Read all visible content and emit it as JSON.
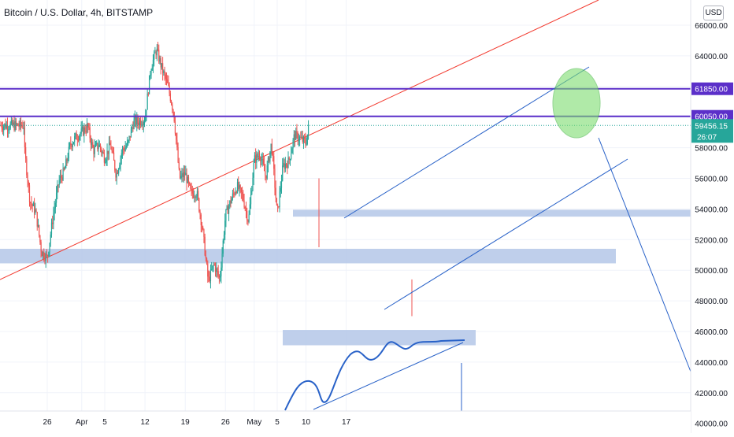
{
  "chart_data": {
    "type": "candlestick",
    "title": "Bitcoin / U.S. Dollar, 4h, BITSTAMP",
    "currency": "USD",
    "y_ticks": [
      66000,
      64000,
      62000,
      60000,
      58000,
      56000,
      54000,
      52000,
      50000,
      48000,
      46000,
      44000,
      42000,
      40000
    ],
    "y_tick_labels": [
      "66000.00",
      "64000.00",
      "62000.00",
      "60000.00",
      "58000.00",
      "56000.00",
      "54000.00",
      "52000.00",
      "50000.00",
      "48000.00",
      "46000.00",
      "44000.00",
      "42000.00",
      "40000.00"
    ],
    "ylim": [
      39300,
      67700
    ],
    "x_ticks": [
      {
        "label": "26",
        "date": "2021-03-26"
      },
      {
        "label": "Apr",
        "date": "2021-04-01"
      },
      {
        "label": "5",
        "date": "2021-04-05"
      },
      {
        "label": "12",
        "date": "2021-04-12"
      },
      {
        "label": "19",
        "date": "2021-04-19"
      },
      {
        "label": "26",
        "date": "2021-04-26"
      },
      {
        "label": "May",
        "date": "2021-05-01"
      },
      {
        "label": "5",
        "date": "2021-05-05"
      },
      {
        "label": "10",
        "date": "2021-05-10"
      },
      {
        "label": "17",
        "date": "2021-05-17"
      }
    ],
    "price_path": [
      [
        "2021-03-22",
        58000
      ],
      [
        "2021-03-23",
        54500
      ],
      [
        "2021-03-24",
        53800
      ],
      [
        "2021-03-25",
        51200
      ],
      [
        "2021-03-26",
        50800
      ],
      [
        "2021-03-27",
        53500
      ],
      [
        "2021-03-28",
        55800
      ],
      [
        "2021-03-29",
        56500
      ],
      [
        "2021-03-30",
        58200
      ],
      [
        "2021-03-31",
        58700
      ],
      [
        "2021-04-01",
        59000
      ],
      [
        "2021-04-02",
        59400
      ],
      [
        "2021-04-03",
        57800
      ],
      [
        "2021-04-04",
        58200
      ],
      [
        "2021-04-05",
        57300
      ],
      [
        "2021-04-06",
        58200
      ],
      [
        "2021-04-07",
        56200
      ],
      [
        "2021-04-08",
        57800
      ],
      [
        "2021-04-09",
        58200
      ],
      [
        "2021-04-10",
        59700
      ],
      [
        "2021-04-11",
        59700
      ],
      [
        "2021-04-12",
        59900
      ],
      [
        "2021-04-13",
        63200
      ],
      [
        "2021-04-14",
        64400
      ],
      [
        "2021-04-15",
        63100
      ],
      [
        "2021-04-16",
        62000
      ],
      [
        "2021-04-17",
        60300
      ],
      [
        "2021-04-18",
        56000
      ],
      [
        "2021-04-19",
        56300
      ],
      [
        "2021-04-20",
        55000
      ],
      [
        "2021-04-21",
        55100
      ],
      [
        "2021-04-22",
        52700
      ],
      [
        "2021-04-23",
        49300
      ],
      [
        "2021-04-24",
        50400
      ],
      [
        "2021-04-25",
        49400
      ],
      [
        "2021-04-26",
        53600
      ],
      [
        "2021-04-27",
        54600
      ],
      [
        "2021-04-28",
        55500
      ],
      [
        "2021-04-29",
        54800
      ],
      [
        "2021-04-30",
        53200
      ],
      [
        "2021-05-01",
        57200
      ],
      [
        "2021-05-02",
        57600
      ],
      [
        "2021-05-03",
        56100
      ],
      [
        "2021-05-04",
        58300
      ],
      [
        "2021-05-05",
        53600
      ],
      [
        "2021-05-06",
        56800
      ],
      [
        "2021-05-07",
        57100
      ],
      [
        "2021-05-08",
        58800
      ],
      [
        "2021-05-09",
        58600
      ],
      [
        "2021-05-10",
        58300
      ],
      [
        "2021-05-10T12:00",
        59456
      ]
    ],
    "horizontal_levels": [
      {
        "price": 61850,
        "label": "61850.00",
        "color": "#5b2fc9"
      },
      {
        "price": 60050,
        "label": "60050.00",
        "color": "#5b2fc9"
      }
    ],
    "current_price": {
      "price": 59456.15,
      "label": "59456.15",
      "countdown": "26:07",
      "color": "#26a69a"
    },
    "colors": {
      "up": "#26a69a",
      "down": "#ef5350",
      "trend_line": "#f23a2f",
      "channel": "#2962c8",
      "zone": "#b4c7e7",
      "highlight_ellipse": "#7cdd6f",
      "level_line": "#5b2fc9",
      "axis_text": "#131722"
    }
  }
}
